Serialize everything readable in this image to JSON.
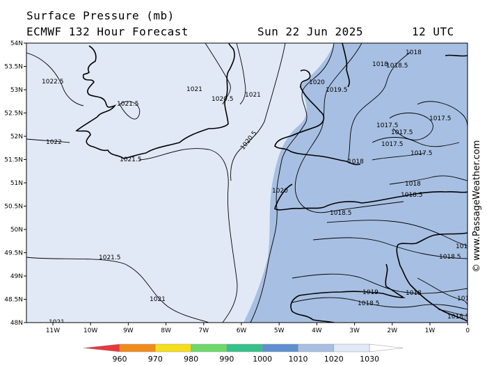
{
  "header": {
    "title": "Surface Pressure (mb)",
    "model": "ECMWF 132 Hour Forecast",
    "date": "Sun 22 Jun 2025",
    "time": "12 UTC"
  },
  "axes": {
    "lat_labels": [
      "54N",
      "53.5N",
      "53N",
      "52.5N",
      "52N",
      "51.5N",
      "51N",
      "50.5N",
      "50N",
      "49.5N",
      "49N",
      "48.5N",
      "48N"
    ],
    "lon_labels": [
      "11W",
      "10W",
      "9W",
      "8W",
      "7W",
      "6W",
      "5W",
      "4W",
      "3W",
      "2W",
      "1W",
      "0"
    ]
  },
  "isobar_labels": [
    "1022.5",
    "1021.5",
    "1022",
    "1021.5",
    "1021",
    "1020.5",
    "1021",
    "1020.5",
    "1021.5",
    "1021",
    "1021",
    "1020",
    "1019.5",
    "1018",
    "1018.5",
    "1018",
    "1017.5",
    "1017.5",
    "1017.5",
    "1017.5",
    "1017.5",
    "1018",
    "1020",
    "1018",
    "1018.5",
    "1018.5",
    "1018",
    "1019",
    "1018.5",
    "1018",
    "1018.5",
    "1018",
    "1018.5"
  ],
  "colorbar": {
    "labels": [
      "960",
      "970",
      "980",
      "990",
      "1000",
      "1010",
      "1020",
      "1030"
    ],
    "colors": [
      "#e8383b",
      "#f08b1c",
      "#f5df1a",
      "#6fd86a",
      "#36c18b",
      "#5f8fd0",
      "#a7bfe2",
      "#e1e9f6"
    ]
  },
  "credit": "© www.PassageWeather.com",
  "colors": {
    "ocean_high": "#e1e9f6",
    "ocean_mid": "#a7bfe2",
    "coast": "#000000"
  }
}
